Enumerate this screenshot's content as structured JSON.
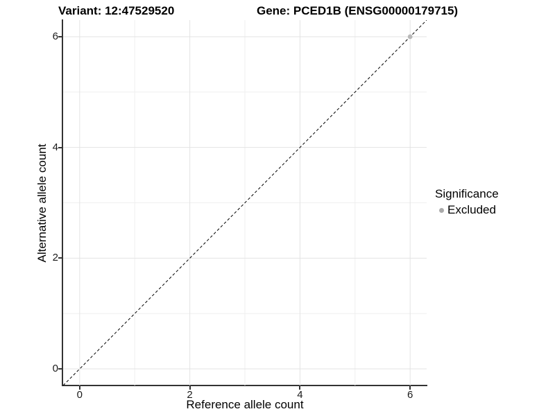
{
  "header": {
    "variant_title": "Variant: 12:47529520",
    "gene_title": "Gene: PCED1B (ENSG00000179715)"
  },
  "chart_data": {
    "type": "scatter",
    "title": "Variant: 12:47529520   Gene: PCED1B (ENSG00000179715)",
    "xlabel": "Reference allele count",
    "ylabel": "Alternative allele count",
    "xlim": [
      -0.3,
      6.3
    ],
    "ylim": [
      -0.3,
      6.3
    ],
    "x_ticks": [
      0,
      2,
      4,
      6
    ],
    "y_ticks": [
      0,
      2,
      4,
      6
    ],
    "minor_gridlines": [
      1,
      3,
      5
    ],
    "grid": "on",
    "legend_position": "right",
    "series": [
      {
        "name": "Excluded",
        "color": "#b9b9b9",
        "points": [
          {
            "x": 6,
            "y": 6
          }
        ]
      }
    ],
    "reference_line": {
      "equation": "y = x",
      "style": "dashed",
      "color": "#000000"
    }
  },
  "legend": {
    "title": "Significance",
    "items": [
      {
        "label": "Excluded",
        "color": "#aaaaaa"
      }
    ]
  },
  "colors": {
    "background": "#ffffff",
    "axis_line": "#333333",
    "tick_mark": "#333333",
    "tick_label": "#1a1a1a",
    "grid_major": "#e3e3e3",
    "grid_minor": "#efefef"
  }
}
